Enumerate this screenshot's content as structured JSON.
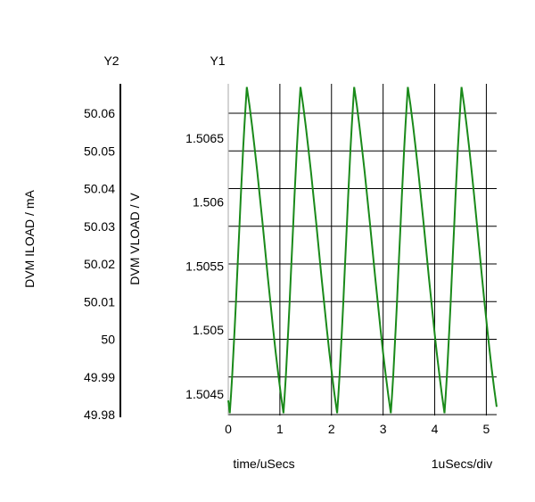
{
  "chart_data": {
    "type": "line",
    "xlabel": "time/uSecs",
    "x_scale_label": "1uSecs/div",
    "y1": {
      "header": "Y1",
      "label": "DVM VLOAD / V",
      "ticks": [
        "1.5045",
        "1.505",
        "1.5055",
        "1.506",
        "1.5065"
      ],
      "tick_values": [
        1.5045,
        1.505,
        1.5055,
        1.506,
        1.5065
      ]
    },
    "y2": {
      "header": "Y2",
      "label": "DVM ILOAD / mA",
      "ticks": [
        "49.98",
        "49.99",
        "50",
        "50.01",
        "50.02",
        "50.03",
        "50.04",
        "50.05",
        "50.06"
      ],
      "tick_values": [
        49.98,
        49.99,
        50.0,
        50.01,
        50.02,
        50.03,
        50.04,
        50.05,
        50.06
      ]
    },
    "x_ticks": [
      "0",
      "1",
      "2",
      "3",
      "4",
      "5"
    ],
    "x_tick_values": [
      0,
      1,
      2,
      3,
      4,
      5
    ],
    "xlim": [
      0,
      5.2
    ],
    "y1lim": [
      1.504332,
      1.506925
    ],
    "grid": true,
    "series": [
      {
        "axis": "y1",
        "color": "#1a8a1a",
        "peaks": [
          {
            "x": 0.36,
            "y": 1.5069
          },
          {
            "x": 1.4,
            "y": 1.5069
          },
          {
            "x": 2.44,
            "y": 1.5069
          },
          {
            "x": 3.48,
            "y": 1.5069
          },
          {
            "x": 4.52,
            "y": 1.5069
          }
        ],
        "troughs": [
          {
            "x": 0.03,
            "y": 1.50435
          },
          {
            "x": 1.07,
            "y": 1.50435
          },
          {
            "x": 2.11,
            "y": 1.50435
          },
          {
            "x": 3.15,
            "y": 1.50435
          },
          {
            "x": 4.19,
            "y": 1.50435
          }
        ],
        "start": {
          "x": 0.0,
          "y": 1.50445
        },
        "end": {
          "x": 5.2,
          "y": 1.5044
        }
      }
    ]
  }
}
